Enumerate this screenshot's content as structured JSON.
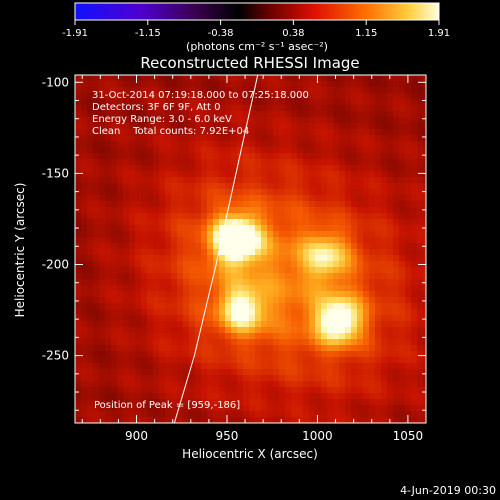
{
  "colorbar": {
    "tick_labels": [
      "-1.91",
      "-1.15",
      "-0.38",
      "0.38",
      "1.15",
      "1.91"
    ],
    "units_label": "(photons cm⁻² s⁻¹ asec⁻²)",
    "range": [
      -1.91,
      1.91
    ]
  },
  "chart_data": {
    "type": "heatmap",
    "title": "Reconstructed RHESSI Image",
    "xlabel": "Heliocentric X (arcsec)",
    "ylabel": "Heliocentric Y (arcsec)",
    "xlim": [
      866,
      1060
    ],
    "ylim": [
      -287,
      -96
    ],
    "x_ticks": [
      900,
      950,
      1000,
      1050
    ],
    "y_ticks": [
      -100,
      -150,
      -200,
      -250
    ],
    "x_tick_labels": [
      "900",
      "950",
      "1000",
      "1050"
    ],
    "y_tick_labels": [
      "-100",
      "-150",
      "-200",
      "-250"
    ],
    "annotations": [
      "31-Oct-2014 07:19:18.000 to 07:25:18.000",
      "Detectors: 3F 6F 9F, Att 0",
      "Energy Range: 3.0 - 6.0 keV",
      "Clean    Total counts: 7.92E+04"
    ],
    "peak_label": "Position of Peak = [959,-186]",
    "peak_position": [
      959,
      -186
    ],
    "sources": [
      {
        "x": 955,
        "y": -186,
        "intensity": 1.0
      },
      {
        "x": 1012,
        "y": -231,
        "intensity": 0.8
      },
      {
        "x": 958,
        "y": -225,
        "intensity": 0.62
      },
      {
        "x": 1005,
        "y": -195,
        "intensity": 0.5
      }
    ],
    "limb_points": [
      [
        920,
        -290
      ],
      [
        932,
        -250
      ],
      [
        944,
        -200
      ],
      [
        955,
        -150
      ],
      [
        967,
        -96
      ]
    ]
  },
  "footer": {
    "date": "4-Jun-2019 00:30"
  }
}
